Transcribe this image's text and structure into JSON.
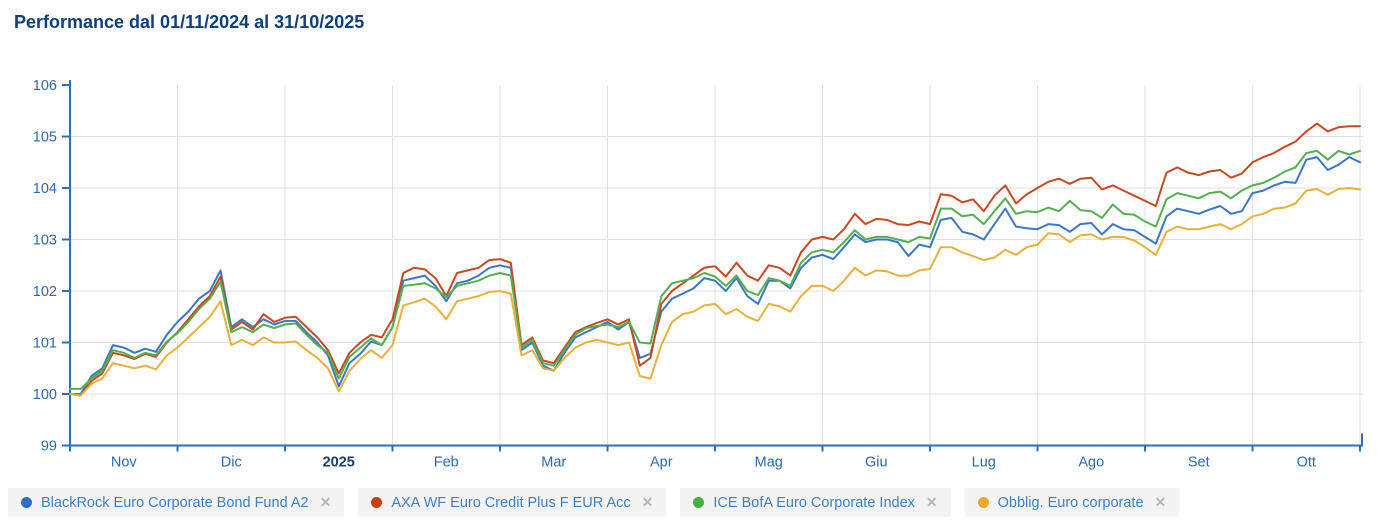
{
  "header": {
    "title": "Performance dal 01/11/2024 al 31/10/2025"
  },
  "chart_data": {
    "type": "line",
    "title": "Performance dal 01/11/2024 al 31/10/2025",
    "xlabel": "",
    "ylabel": "",
    "x_months": [
      "Nov",
      "Dic",
      "2025",
      "Feb",
      "Mar",
      "Apr",
      "Mag",
      "Giu",
      "Lug",
      "Ago",
      "Set",
      "Ott"
    ],
    "bold_month": "2025",
    "y_ticks": [
      99,
      100,
      101,
      102,
      103,
      104,
      105,
      106
    ],
    "ylim": [
      99,
      106
    ],
    "x_step_months": 0.1,
    "grid": true,
    "legend_position": "bottom",
    "axis_color": "#2e6fb7",
    "tick_label_color": "#2a6bb0",
    "bold_month_color": "#173f77",
    "grid_color": "#e2e2e2",
    "series": [
      {
        "name": "BlackRock Euro Corporate Bond Fund A2",
        "color": "#3b78c4",
        "values": [
          100.0,
          100.0,
          100.35,
          100.5,
          100.95,
          100.9,
          100.8,
          100.88,
          100.82,
          101.15,
          101.4,
          101.6,
          101.85,
          102.0,
          102.4,
          101.3,
          101.45,
          101.3,
          101.45,
          101.35,
          101.42,
          101.42,
          101.2,
          101.0,
          100.75,
          100.15,
          100.6,
          100.78,
          101.02,
          100.95,
          101.3,
          102.2,
          102.25,
          102.3,
          102.1,
          101.8,
          102.15,
          102.2,
          102.3,
          102.45,
          102.5,
          102.45,
          100.85,
          101.0,
          100.55,
          100.45,
          100.8,
          101.1,
          101.2,
          101.3,
          101.4,
          101.25,
          101.4,
          100.7,
          100.78,
          101.6,
          101.85,
          101.95,
          102.05,
          102.25,
          102.2,
          102.0,
          102.25,
          101.9,
          101.75,
          102.2,
          102.2,
          102.05,
          102.45,
          102.65,
          102.7,
          102.62,
          102.85,
          103.1,
          102.95,
          103.0,
          103.0,
          102.95,
          102.68,
          102.9,
          102.85,
          103.38,
          103.42,
          103.15,
          103.1,
          103.0,
          103.3,
          103.6,
          103.25,
          103.22,
          103.2,
          103.3,
          103.28,
          103.15,
          103.3,
          103.32,
          103.1,
          103.3,
          103.2,
          103.18,
          103.05,
          102.92,
          103.45,
          103.6,
          103.55,
          103.5,
          103.58,
          103.65,
          103.5,
          103.55,
          103.9,
          103.95,
          104.05,
          104.12,
          104.1,
          104.55,
          104.6,
          104.35,
          104.45,
          104.6,
          104.5
        ]
      },
      {
        "name": "AXA WF Euro Credit Plus F EUR Acc",
        "color": "#c9481f",
        "values": [
          100.0,
          99.97,
          100.25,
          100.4,
          100.8,
          100.75,
          100.68,
          100.78,
          100.72,
          101.0,
          101.2,
          101.45,
          101.7,
          101.9,
          102.28,
          101.25,
          101.4,
          101.25,
          101.55,
          101.4,
          101.48,
          101.5,
          101.3,
          101.1,
          100.85,
          100.4,
          100.8,
          101.0,
          101.15,
          101.1,
          101.45,
          102.35,
          102.45,
          102.42,
          102.25,
          101.9,
          102.35,
          102.4,
          102.45,
          102.6,
          102.62,
          102.55,
          100.95,
          101.1,
          100.65,
          100.6,
          100.9,
          101.2,
          101.3,
          101.38,
          101.45,
          101.35,
          101.45,
          100.55,
          100.7,
          101.75,
          102.0,
          102.15,
          102.3,
          102.45,
          102.48,
          102.28,
          102.55,
          102.3,
          102.2,
          102.5,
          102.45,
          102.3,
          102.75,
          103.0,
          103.05,
          103.0,
          103.2,
          103.5,
          103.3,
          103.4,
          103.38,
          103.3,
          103.28,
          103.35,
          103.3,
          103.88,
          103.85,
          103.72,
          103.78,
          103.55,
          103.85,
          104.05,
          103.7,
          103.88,
          104.0,
          104.12,
          104.18,
          104.08,
          104.18,
          104.2,
          103.97,
          104.05,
          103.95,
          103.85,
          103.75,
          103.65,
          104.3,
          104.4,
          104.3,
          104.25,
          104.32,
          104.35,
          104.2,
          104.28,
          104.5,
          104.6,
          104.68,
          104.8,
          104.9,
          105.1,
          105.25,
          105.1,
          105.18,
          105.2,
          105.2
        ]
      },
      {
        "name": "ICE BofA Euro Corporate Index",
        "color": "#52b14e",
        "values": [
          100.1,
          100.1,
          100.3,
          100.45,
          100.85,
          100.8,
          100.7,
          100.8,
          100.75,
          101.02,
          101.18,
          101.4,
          101.65,
          101.85,
          102.18,
          101.2,
          101.3,
          101.2,
          101.35,
          101.28,
          101.35,
          101.37,
          101.15,
          100.95,
          100.8,
          100.3,
          100.72,
          100.9,
          101.08,
          100.95,
          101.3,
          102.1,
          102.12,
          102.15,
          102.05,
          101.88,
          102.1,
          102.15,
          102.2,
          102.3,
          102.35,
          102.3,
          100.9,
          101.05,
          100.6,
          100.55,
          100.85,
          101.15,
          101.28,
          101.32,
          101.35,
          101.3,
          101.4,
          101.0,
          100.98,
          101.9,
          102.15,
          102.2,
          102.25,
          102.35,
          102.28,
          102.1,
          102.3,
          102.0,
          101.92,
          102.25,
          102.2,
          102.1,
          102.55,
          102.75,
          102.8,
          102.75,
          102.95,
          103.18,
          103.0,
          103.05,
          103.05,
          103.0,
          102.95,
          103.05,
          103.02,
          103.6,
          103.6,
          103.45,
          103.48,
          103.3,
          103.55,
          103.8,
          103.5,
          103.55,
          103.53,
          103.62,
          103.55,
          103.75,
          103.57,
          103.55,
          103.42,
          103.68,
          103.5,
          103.48,
          103.35,
          103.25,
          103.78,
          103.9,
          103.85,
          103.8,
          103.9,
          103.93,
          103.8,
          103.95,
          104.05,
          104.1,
          104.2,
          104.32,
          104.4,
          104.68,
          104.72,
          104.55,
          104.72,
          104.65,
          104.72
        ]
      },
      {
        "name": "Obblig. Euro corporate",
        "color": "#e9b03a",
        "values": [
          100.0,
          99.97,
          100.2,
          100.3,
          100.6,
          100.55,
          100.5,
          100.55,
          100.48,
          100.75,
          100.9,
          101.1,
          101.3,
          101.5,
          101.8,
          100.95,
          101.05,
          100.95,
          101.1,
          101.0,
          101.0,
          101.02,
          100.85,
          100.7,
          100.5,
          100.05,
          100.45,
          100.68,
          100.85,
          100.7,
          100.95,
          101.72,
          101.78,
          101.85,
          101.7,
          101.45,
          101.8,
          101.85,
          101.9,
          101.98,
          102.0,
          101.95,
          100.75,
          100.85,
          100.5,
          100.45,
          100.7,
          100.9,
          101.0,
          101.05,
          101.0,
          100.95,
          101.0,
          100.35,
          100.3,
          100.95,
          101.4,
          101.55,
          101.6,
          101.72,
          101.75,
          101.55,
          101.65,
          101.5,
          101.42,
          101.75,
          101.7,
          101.6,
          101.9,
          102.1,
          102.1,
          102.0,
          102.2,
          102.45,
          102.3,
          102.4,
          102.38,
          102.3,
          102.3,
          102.4,
          102.43,
          102.85,
          102.85,
          102.75,
          102.68,
          102.6,
          102.65,
          102.8,
          102.7,
          102.85,
          102.9,
          103.12,
          103.1,
          102.95,
          103.08,
          103.1,
          103.0,
          103.05,
          103.05,
          102.98,
          102.85,
          102.7,
          103.15,
          103.25,
          103.2,
          103.2,
          103.25,
          103.3,
          103.2,
          103.3,
          103.45,
          103.5,
          103.6,
          103.62,
          103.7,
          103.95,
          103.98,
          103.87,
          103.98,
          104.0,
          103.97
        ]
      }
    ]
  },
  "legend": {
    "remove_icon": "✕",
    "items": [
      {
        "label": "BlackRock Euro Corporate Bond Fund A2",
        "color": "#2e6fc0"
      },
      {
        "label": "AXA WF Euro Credit Plus F EUR Acc",
        "color": "#c93d13"
      },
      {
        "label": "ICE BofA Euro Corporate Index",
        "color": "#44b23e"
      },
      {
        "label": "Obblig. Euro corporate",
        "color": "#e9a92b"
      }
    ]
  }
}
